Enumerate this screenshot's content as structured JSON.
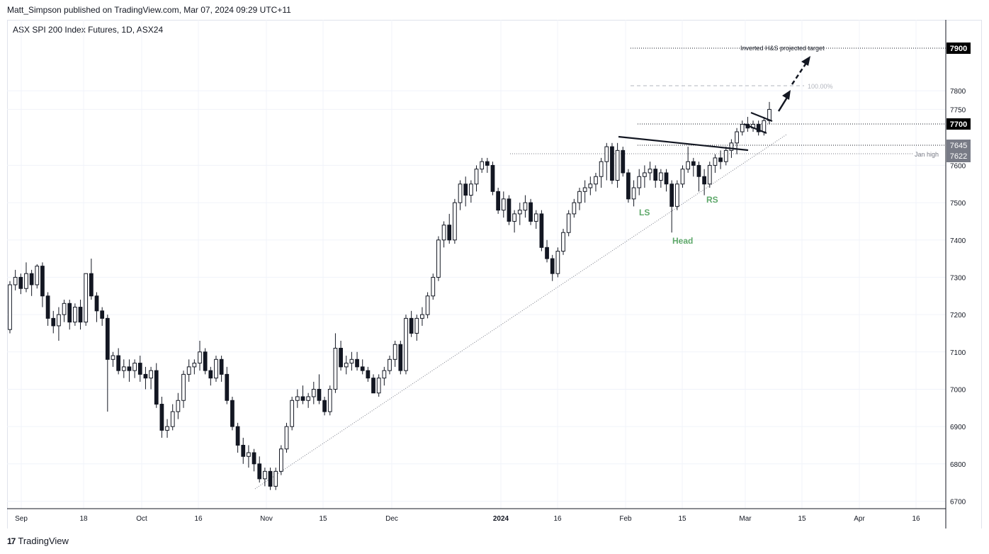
{
  "header": {
    "publisher": "Matt_Simpson published on TradingView.com, Mar 07, 2024 09:29 UTC+11"
  },
  "footer": {
    "brand": "TradingView",
    "logo_icon": "tradingview-logo-icon"
  },
  "chart_data": {
    "type": "candlestick",
    "title": "ASX SPI 200 Index Futures, 1D, ASX24",
    "ylim": [
      6680,
      7990
    ],
    "y_ticks": [
      6700,
      6800,
      6900,
      7000,
      7100,
      7200,
      7300,
      7400,
      7500,
      7600,
      7750,
      7800
    ],
    "x_ticks": [
      "Sep",
      "18",
      "Oct",
      "16",
      "Nov",
      "15",
      "Dec",
      "2024",
      "16",
      "Feb",
      "15",
      "Mar",
      "15",
      "Apr",
      "16"
    ],
    "grid": true,
    "colors": {
      "up": "#ffffff",
      "down": "#131722",
      "wick": "#131722",
      "grid": "#f0f3fa",
      "label_bg": "#000000",
      "pattern_label": "#5ea86a",
      "badge_gray": "#787b86"
    },
    "price_badges": [
      {
        "value": "7900",
        "style": "dark"
      },
      {
        "value": "7700",
        "style": "dark"
      },
      {
        "value": "7645",
        "style": "gray"
      },
      {
        "value": "7622",
        "style": "gray"
      }
    ],
    "annotations": {
      "target_label": "Inverted H&S projected target",
      "fib_label": "100.00%",
      "jan_high_label": "Jan high",
      "ls": "LS",
      "head": "Head",
      "rs": "RS"
    },
    "candles": [
      [
        7160,
        7290,
        7150,
        7280
      ],
      [
        7280,
        7320,
        7265,
        7300
      ],
      [
        7300,
        7310,
        7255,
        7270
      ],
      [
        7270,
        7340,
        7260,
        7310
      ],
      [
        7310,
        7320,
        7250,
        7280
      ],
      [
        7280,
        7335,
        7270,
        7330
      ],
      [
        7330,
        7340,
        7220,
        7250
      ],
      [
        7250,
        7260,
        7170,
        7190
      ],
      [
        7190,
        7210,
        7150,
        7170
      ],
      [
        7170,
        7220,
        7130,
        7200
      ],
      [
        7200,
        7240,
        7180,
        7230
      ],
      [
        7230,
        7240,
        7160,
        7180
      ],
      [
        7180,
        7230,
        7170,
        7220
      ],
      [
        7220,
        7240,
        7160,
        7180
      ],
      [
        7180,
        7310,
        7170,
        7310
      ],
      [
        7310,
        7350,
        7240,
        7250
      ],
      [
        7250,
        7260,
        7180,
        7210
      ],
      [
        7210,
        7220,
        7170,
        7190
      ],
      [
        7190,
        7200,
        6940,
        7080
      ],
      [
        7080,
        7100,
        7060,
        7090
      ],
      [
        7090,
        7110,
        7040,
        7050
      ],
      [
        7050,
        7080,
        7030,
        7060
      ],
      [
        7060,
        7080,
        7020,
        7050
      ],
      [
        7050,
        7080,
        7030,
        7070
      ],
      [
        7070,
        7090,
        7020,
        7040
      ],
      [
        7040,
        7060,
        7000,
        7030
      ],
      [
        7030,
        7060,
        7000,
        7050
      ],
      [
        7050,
        7070,
        6950,
        6960
      ],
      [
        6960,
        6980,
        6870,
        6890
      ],
      [
        6890,
        6920,
        6870,
        6900
      ],
      [
        6900,
        6960,
        6890,
        6940
      ],
      [
        6940,
        6990,
        6920,
        6970
      ],
      [
        6970,
        7050,
        6950,
        7040
      ],
      [
        7040,
        7080,
        7020,
        7060
      ],
      [
        7060,
        7080,
        7040,
        7070
      ],
      [
        7070,
        7130,
        7050,
        7100
      ],
      [
        7100,
        7110,
        7040,
        7050
      ],
      [
        7050,
        7060,
        7010,
        7030
      ],
      [
        7030,
        7090,
        7020,
        7080
      ],
      [
        7080,
        7090,
        7020,
        7040
      ],
      [
        7040,
        7060,
        6960,
        6970
      ],
      [
        6970,
        6980,
        6890,
        6900
      ],
      [
        6900,
        6910,
        6830,
        6850
      ],
      [
        6850,
        6870,
        6800,
        6820
      ],
      [
        6820,
        6850,
        6790,
        6830
      ],
      [
        6830,
        6840,
        6780,
        6800
      ],
      [
        6800,
        6820,
        6750,
        6760
      ],
      [
        6760,
        6790,
        6740,
        6780
      ],
      [
        6780,
        6790,
        6730,
        6740
      ],
      [
        6740,
        6790,
        6730,
        6780
      ],
      [
        6780,
        6850,
        6770,
        6840
      ],
      [
        6840,
        6910,
        6830,
        6900
      ],
      [
        6900,
        6980,
        6890,
        6970
      ],
      [
        6970,
        7000,
        6950,
        6980
      ],
      [
        6980,
        7010,
        6960,
        6970
      ],
      [
        6970,
        6990,
        6950,
        6980
      ],
      [
        6980,
        7020,
        6960,
        7000
      ],
      [
        7000,
        7040,
        6960,
        6970
      ],
      [
        6970,
        6980,
        6930,
        6940
      ],
      [
        6940,
        7010,
        6930,
        7000
      ],
      [
        7000,
        7150,
        6990,
        7110
      ],
      [
        7110,
        7130,
        7050,
        7060
      ],
      [
        7060,
        7090,
        7040,
        7070
      ],
      [
        7070,
        7100,
        7050,
        7080
      ],
      [
        7080,
        7100,
        7050,
        7060
      ],
      [
        7060,
        7080,
        7040,
        7050
      ],
      [
        7050,
        7060,
        7020,
        7030
      ],
      [
        7030,
        7040,
        6990,
        6990
      ],
      [
        6990,
        7040,
        6980,
        7030
      ],
      [
        7030,
        7060,
        7010,
        7050
      ],
      [
        7050,
        7090,
        7040,
        7080
      ],
      [
        7080,
        7130,
        7060,
        7120
      ],
      [
        7120,
        7130,
        7040,
        7050
      ],
      [
        7050,
        7200,
        7040,
        7190
      ],
      [
        7190,
        7210,
        7140,
        7150
      ],
      [
        7150,
        7200,
        7130,
        7190
      ],
      [
        7190,
        7220,
        7170,
        7200
      ],
      [
        7200,
        7260,
        7190,
        7250
      ],
      [
        7250,
        7310,
        7240,
        7300
      ],
      [
        7300,
        7410,
        7290,
        7400
      ],
      [
        7400,
        7450,
        7380,
        7440
      ],
      [
        7440,
        7470,
        7390,
        7400
      ],
      [
        7400,
        7510,
        7390,
        7500
      ],
      [
        7500,
        7560,
        7480,
        7550
      ],
      [
        7550,
        7570,
        7490,
        7520
      ],
      [
        7520,
        7560,
        7500,
        7550
      ],
      [
        7550,
        7600,
        7530,
        7590
      ],
      [
        7590,
        7620,
        7580,
        7610
      ],
      [
        7610,
        7620,
        7580,
        7600
      ],
      [
        7600,
        7610,
        7520,
        7530
      ],
      [
        7530,
        7540,
        7470,
        7480
      ],
      [
        7480,
        7530,
        7460,
        7510
      ],
      [
        7510,
        7520,
        7440,
        7450
      ],
      [
        7450,
        7480,
        7420,
        7470
      ],
      [
        7470,
        7500,
        7440,
        7480
      ],
      [
        7480,
        7520,
        7460,
        7500
      ],
      [
        7500,
        7510,
        7440,
        7450
      ],
      [
        7450,
        7480,
        7430,
        7470
      ],
      [
        7470,
        7480,
        7370,
        7380
      ],
      [
        7380,
        7400,
        7340,
        7350
      ],
      [
        7350,
        7360,
        7290,
        7310
      ],
      [
        7310,
        7380,
        7300,
        7370
      ],
      [
        7370,
        7430,
        7360,
        7420
      ],
      [
        7420,
        7480,
        7410,
        7470
      ],
      [
        7470,
        7510,
        7460,
        7500
      ],
      [
        7500,
        7540,
        7480,
        7530
      ],
      [
        7530,
        7560,
        7500,
        7540
      ],
      [
        7540,
        7570,
        7520,
        7550
      ],
      [
        7550,
        7580,
        7530,
        7570
      ],
      [
        7570,
        7620,
        7540,
        7610
      ],
      [
        7610,
        7660,
        7560,
        7650
      ],
      [
        7650,
        7660,
        7550,
        7560
      ],
      [
        7560,
        7660,
        7540,
        7640
      ],
      [
        7640,
        7650,
        7570,
        7580
      ],
      [
        7580,
        7590,
        7500,
        7510
      ],
      [
        7510,
        7560,
        7490,
        7540
      ],
      [
        7540,
        7590,
        7520,
        7570
      ],
      [
        7570,
        7600,
        7540,
        7580
      ],
      [
        7580,
        7610,
        7560,
        7590
      ],
      [
        7590,
        7600,
        7540,
        7560
      ],
      [
        7560,
        7590,
        7540,
        7580
      ],
      [
        7580,
        7590,
        7530,
        7550
      ],
      [
        7550,
        7560,
        7420,
        7490
      ],
      [
        7490,
        7560,
        7480,
        7550
      ],
      [
        7550,
        7600,
        7540,
        7590
      ],
      [
        7590,
        7650,
        7580,
        7610
      ],
      [
        7610,
        7620,
        7570,
        7600
      ],
      [
        7600,
        7610,
        7530,
        7570
      ],
      [
        7570,
        7590,
        7520,
        7550
      ],
      [
        7550,
        7610,
        7540,
        7600
      ],
      [
        7600,
        7630,
        7580,
        7620
      ],
      [
        7620,
        7640,
        7590,
        7610
      ],
      [
        7610,
        7650,
        7600,
        7640
      ],
      [
        7640,
        7670,
        7620,
        7660
      ],
      [
        7660,
        7700,
        7630,
        7690
      ],
      [
        7690,
        7720,
        7680,
        7710
      ],
      [
        7710,
        7730,
        7690,
        7700
      ],
      [
        7700,
        7720,
        7690,
        7710
      ],
      [
        7710,
        7720,
        7680,
        7690
      ],
      [
        7690,
        7730,
        7680,
        7720
      ],
      [
        7720,
        7770,
        7710,
        7750
      ]
    ]
  }
}
